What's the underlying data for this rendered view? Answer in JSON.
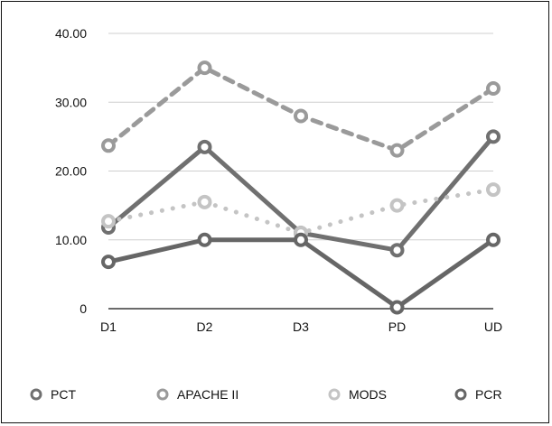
{
  "chart_data": {
    "type": "line",
    "categories": [
      "D1",
      "D2",
      "D3",
      "PD",
      "UD"
    ],
    "ylim": [
      0,
      40
    ],
    "yticks": [
      0,
      10,
      20,
      30,
      40
    ],
    "ytick_labels": [
      "0",
      "10.00",
      "20.00",
      "30.00",
      "40.00"
    ],
    "grid": true,
    "legend_position": "bottom",
    "series": [
      {
        "name": "PCT",
        "values": [
          11.8,
          23.5,
          11.0,
          8.5,
          25.0
        ],
        "color": "#707070",
        "dash": "solid",
        "marker_fill": "#ffffff"
      },
      {
        "name": "APACHE II",
        "values": [
          23.7,
          35.0,
          28.0,
          23.0,
          32.0
        ],
        "color": "#9a9a9a",
        "dash": "dashed",
        "marker_fill": "#ffffff"
      },
      {
        "name": "MODS",
        "values": [
          12.7,
          15.5,
          11.0,
          15.0,
          17.3
        ],
        "color": "#c4c4c4",
        "dash": "dotted",
        "marker_fill": "#ffffff"
      },
      {
        "name": "PCR",
        "values": [
          6.8,
          10.0,
          10.0,
          0.2,
          10.0
        ],
        "color": "#666666",
        "dash": "solid",
        "marker_fill": "#ffffff"
      }
    ]
  }
}
